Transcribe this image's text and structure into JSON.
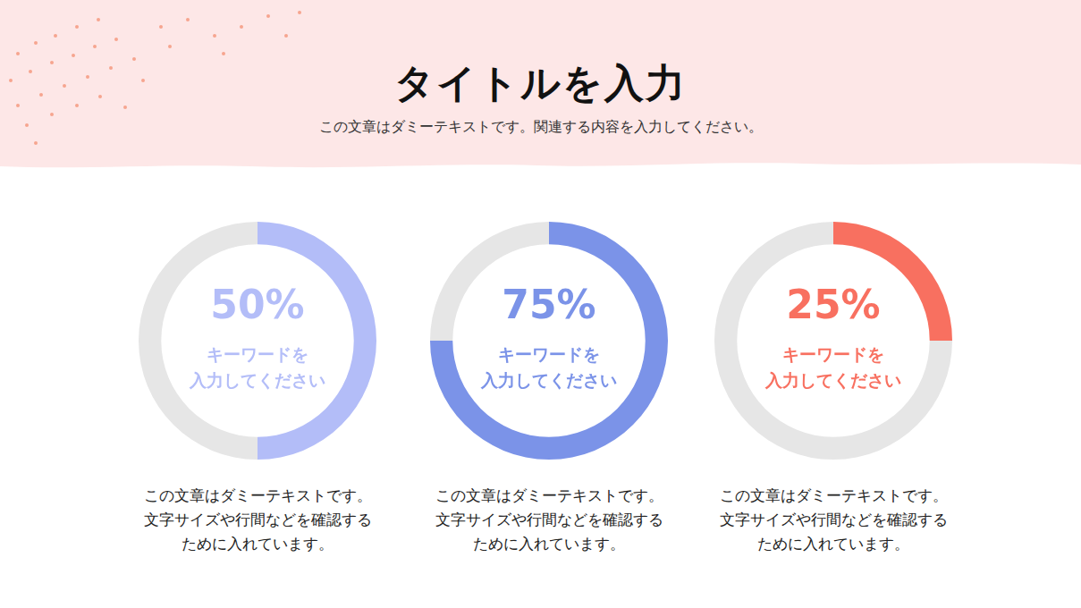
{
  "title": "タイトルを入力",
  "subtitle": "この文章はダミーテキストです。関連する内容を入力してください。",
  "chart_data": [
    {
      "type": "doughnut",
      "categories": [
        "キーワードを\n入力してください",
        null
      ],
      "values": [
        50,
        50
      ],
      "value_labels": [
        "50%",
        null
      ],
      "colors": [
        "#b3bdf8",
        "#e6e6e6"
      ],
      "subtitle": "この文章はダミーテキストです。\n文字サイズや行間などを確認する\nために入れています。"
    },
    {
      "type": "doughnut",
      "categories": [
        "キーワードを\n入力してください",
        null
      ],
      "values": [
        75,
        25
      ],
      "value_labels": [
        "75%",
        null
      ],
      "colors": [
        "#7b93e8",
        "#e6e6e6"
      ],
      "subtitle": "この文章はダミーテキストです。\n文字サイズや行間などを確認する\nために入れています。"
    },
    {
      "type": "doughnut",
      "categories": [
        "キーワードを\n入力してください",
        null
      ],
      "values": [
        25,
        75
      ],
      "value_labels": [
        "25%",
        null
      ],
      "colors": [
        "#f87060",
        "#e6e6e6"
      ],
      "subtitle": "この文章はダミーテキストです。\n文字サイズや行間などを確認する\nために入れています。"
    }
  ]
}
